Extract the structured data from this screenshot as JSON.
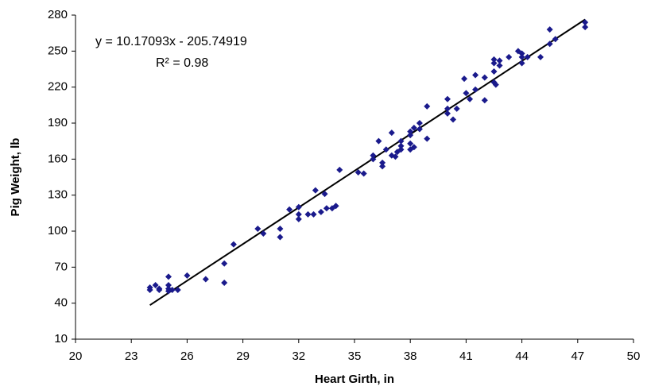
{
  "chart_data": {
    "type": "scatter",
    "x_label": "Heart Girth, in",
    "y_label": "Pig Weight, lb",
    "annotations": [
      "y = 10.17093x - 205.74919",
      "R² = 0.98"
    ],
    "color": "#1a1a8c",
    "x": [
      24,
      24,
      24.3,
      24.5,
      24.5,
      25,
      25,
      25,
      25,
      25.2,
      25.5,
      26,
      27,
      28,
      28,
      28.5,
      29.8,
      30.1,
      31,
      31,
      31.5,
      32,
      32,
      32,
      32.5,
      32.8,
      32.9,
      33.2,
      33.4,
      33.5,
      33.8,
      34,
      34.2,
      35.2,
      35.5,
      36,
      36,
      36.3,
      36.5,
      36.5,
      36.7,
      37,
      37,
      37.2,
      37.3,
      37.5,
      37.5,
      37.5,
      38,
      38,
      38,
      38,
      38.2,
      38.2,
      38.5,
      38.5,
      38.9,
      38.9,
      40,
      40,
      40,
      40.3,
      40.5,
      40.9,
      41,
      41.2,
      41.5,
      41.5,
      42,
      42,
      42.5,
      42.5,
      42.5,
      42.5,
      42.6,
      42.8,
      42.8,
      43.3,
      43.8,
      44,
      44,
      44,
      44.3,
      45,
      45.5,
      45.5,
      45.8,
      47.4,
      47.4
    ],
    "values": [
      51,
      53,
      55,
      52,
      51,
      62,
      55,
      52,
      50,
      51,
      51,
      63,
      60,
      73,
      57,
      89,
      102,
      98,
      102,
      95,
      118,
      120,
      114,
      110,
      114,
      114,
      134,
      116,
      131,
      119,
      119,
      121,
      151,
      149,
      148,
      163,
      160,
      175,
      157,
      154,
      168,
      182,
      163,
      162,
      166,
      175,
      171,
      168,
      183,
      180,
      173,
      168,
      186,
      170,
      190,
      185,
      204,
      177,
      210,
      202,
      198,
      193,
      202,
      227,
      215,
      210,
      230,
      218,
      228,
      209,
      243,
      240,
      233,
      224,
      222,
      242,
      238,
      245,
      250,
      248,
      240,
      245,
      245,
      245,
      268,
      256,
      260,
      274,
      270
    ],
    "trendline": {
      "x": [
        24,
        47.4
      ],
      "values": [
        38.35,
        276.35
      ],
      "color": "#000000"
    },
    "xlim": [
      20,
      50
    ],
    "xticks": [
      20,
      23,
      26,
      29,
      32,
      35,
      38,
      41,
      44,
      47,
      50
    ],
    "ylim": [
      10,
      280
    ],
    "yticks": [
      10,
      40,
      70,
      100,
      130,
      160,
      190,
      220,
      250,
      280
    ],
    "grid": false
  }
}
